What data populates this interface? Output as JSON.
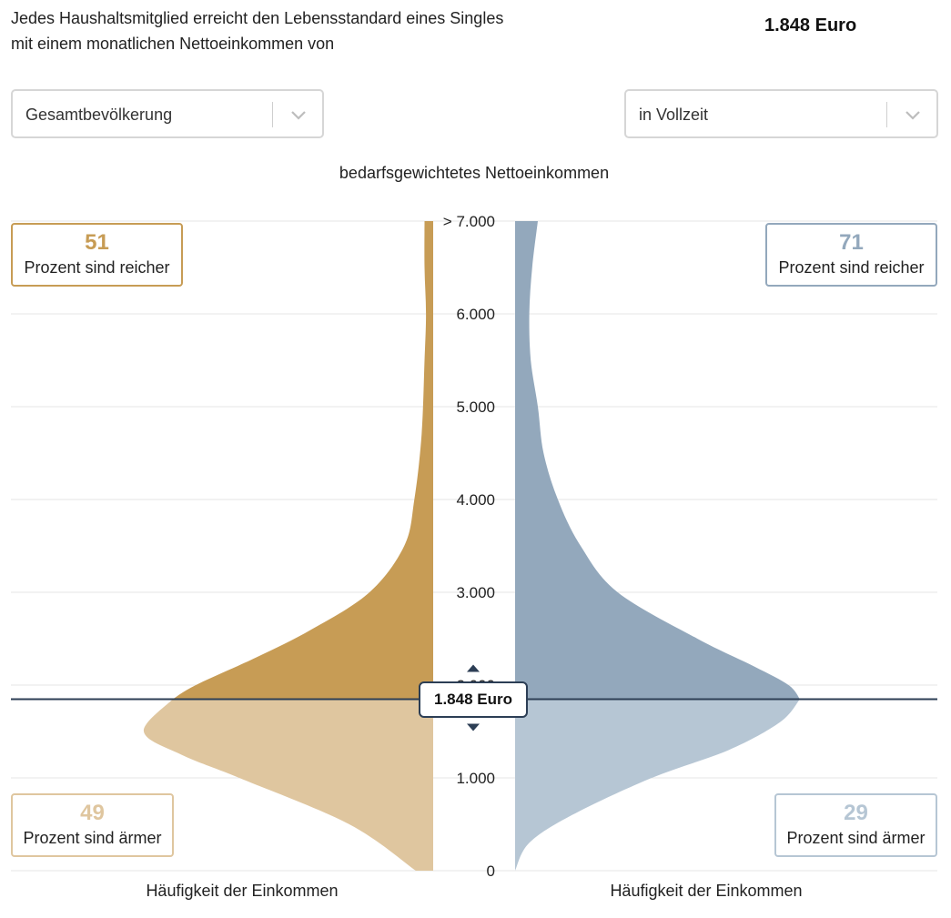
{
  "intro": {
    "line1": "Jedes Haushaltsmitglied erreicht den Lebensstandard eines Singles",
    "line2": "mit einem monatlichen Nettoeinkommen von",
    "amount": "1.848 Euro"
  },
  "filters": {
    "left": {
      "selected": "Gesamtbevölkerung",
      "icon": "chevron-down-icon"
    },
    "right": {
      "selected": "in Vollzeit",
      "icon": "chevron-down-icon"
    }
  },
  "chart_data": {
    "type": "area",
    "title": "bedarfsgewichtetes Nettoeinkommen",
    "ylim": [
      0,
      7000
    ],
    "y_ticks": [
      {
        "value": 0,
        "label": "0"
      },
      {
        "value": 1000,
        "label": "1.000"
      },
      {
        "value": 2000,
        "label": "2.000"
      },
      {
        "value": 3000,
        "label": "3.000"
      },
      {
        "value": 4000,
        "label": "4.000"
      },
      {
        "value": 5000,
        "label": "5.000"
      },
      {
        "value": 6000,
        "label": "6.000"
      },
      {
        "value": 7000,
        "label": "> 7.000"
      }
    ],
    "grid": true,
    "marker": {
      "value": 1848,
      "label": "1.848 Euro"
    },
    "series": [
      {
        "xlabel": "Häufigkeit der Einkommen",
        "side": "left",
        "color_above": "#c79c55",
        "color_below": "#dfc69f",
        "richer": {
          "value": "51",
          "text": "Prozent sind reicher"
        },
        "poorer": {
          "value": "49",
          "text": "Prozent sind ärmer"
        },
        "density": [
          [
            0,
            0.06
          ],
          [
            500,
            0.29
          ],
          [
            1000,
            0.67
          ],
          [
            1250,
            0.87
          ],
          [
            1500,
            1.0
          ],
          [
            1848,
            0.9
          ],
          [
            2000,
            0.82
          ],
          [
            2300,
            0.61
          ],
          [
            2600,
            0.42
          ],
          [
            3000,
            0.22
          ],
          [
            3500,
            0.1
          ],
          [
            4000,
            0.065
          ],
          [
            4700,
            0.04
          ],
          [
            5500,
            0.03
          ],
          [
            6000,
            0.025
          ],
          [
            6500,
            0.03
          ],
          [
            7000,
            0.03
          ]
        ]
      },
      {
        "xlabel": "Häufigkeit der Einkommen",
        "side": "right",
        "color_above": "#93a8bc",
        "color_below": "#b6c6d4",
        "richer": {
          "value": "71",
          "text": "Prozent sind reicher"
        },
        "poorer": {
          "value": "29",
          "text": "Prozent sind ärmer"
        },
        "density": [
          [
            0,
            0.0
          ],
          [
            300,
            0.05
          ],
          [
            600,
            0.2
          ],
          [
            1000,
            0.48
          ],
          [
            1300,
            0.75
          ],
          [
            1600,
            0.93
          ],
          [
            1848,
            1.0
          ],
          [
            2000,
            0.96
          ],
          [
            2200,
            0.84
          ],
          [
            2500,
            0.64
          ],
          [
            3000,
            0.36
          ],
          [
            3500,
            0.23
          ],
          [
            4000,
            0.15
          ],
          [
            4500,
            0.1
          ],
          [
            5000,
            0.08
          ],
          [
            5500,
            0.055
          ],
          [
            6000,
            0.05
          ],
          [
            6500,
            0.06
          ],
          [
            7000,
            0.08
          ]
        ]
      }
    ]
  }
}
